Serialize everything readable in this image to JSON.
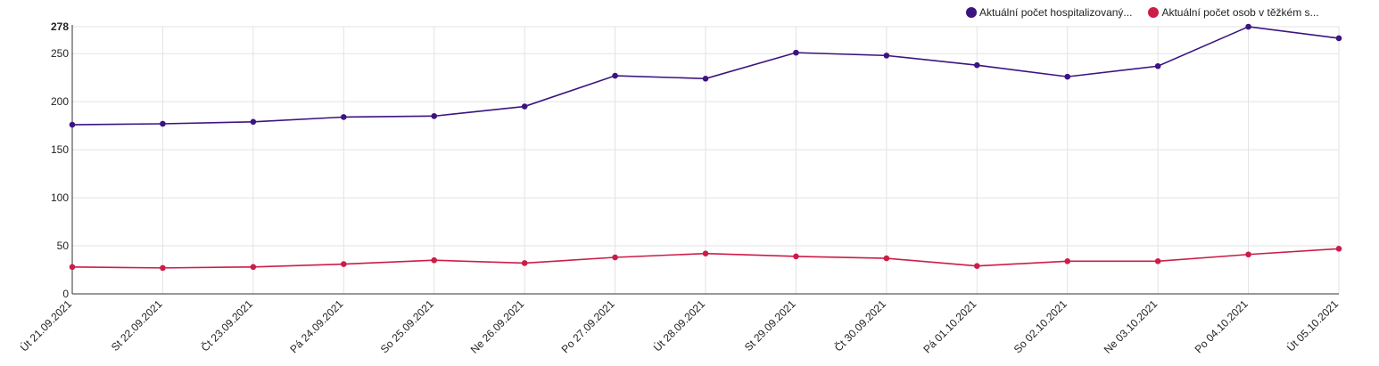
{
  "chart_data": {
    "type": "line",
    "categories": [
      "Út 21.09.2021",
      "St 22.09.2021",
      "Čt 23.09.2021",
      "Pá 24.09.2021",
      "So 25.09.2021",
      "Ne 26.09.2021",
      "Po 27.09.2021",
      "Út 28.09.2021",
      "St 29.09.2021",
      "Čt 30.09.2021",
      "Pá 01.10.2021",
      "So 02.10.2021",
      "Ne 03.10.2021",
      "Po 04.10.2021",
      "Út 05.10.2021"
    ],
    "series": [
      {
        "name": "Aktuální počet hospitalizovaný...",
        "color": "#3b1480",
        "values": [
          176,
          177,
          179,
          184,
          185,
          195,
          227,
          224,
          251,
          248,
          238,
          226,
          237,
          278,
          266
        ]
      },
      {
        "name": "Aktuální počet osob v těžkém s...",
        "color": "#cc1c48",
        "values": [
          28,
          27,
          28,
          31,
          35,
          32,
          38,
          42,
          39,
          37,
          29,
          34,
          34,
          41,
          47
        ]
      }
    ],
    "yticks": [
      "278",
      "250",
      "200",
      "150",
      "100",
      "50",
      "0"
    ],
    "ylim": [
      0,
      278
    ],
    "grid": true,
    "legend_position": "top-right"
  }
}
